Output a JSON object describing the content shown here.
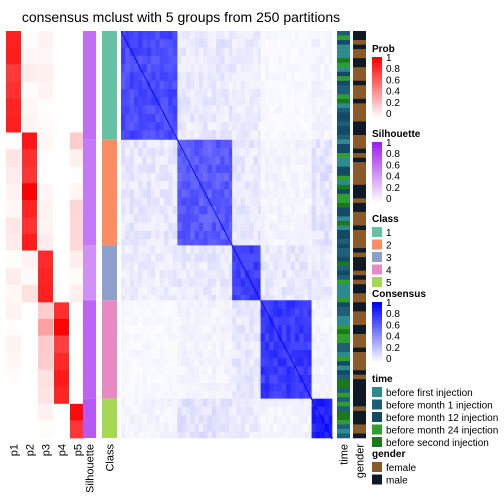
{
  "chart_data": {
    "type": "heatmap",
    "title": "consensus mclust with 5 groups from 250 partitions",
    "groups": [
      1,
      2,
      3,
      4,
      5
    ],
    "group_sizes": [
      105,
      102,
      53,
      95,
      38
    ],
    "prob_columns": [
      "p1",
      "p2",
      "p3",
      "p4",
      "p5"
    ],
    "annotation_columns": [
      "Silhouette",
      "Class"
    ],
    "right_annotation_columns": [
      "time",
      "gender"
    ],
    "class_colors": {
      "1": "#66C2A5",
      "2": "#FC8D62",
      "3": "#8DA0CB",
      "4": "#E78AC3",
      "5": "#A6D854"
    },
    "time_colors": {
      "before first injection": "#2E8B8B",
      "before month 1 injection": "#1F5E7A",
      "before month 12 injection": "#134A66",
      "before month 24 injection": "#2E9E2E",
      "before second injection": "#1A7A1A"
    },
    "gender_colors": {
      "female": "#8B5A2B",
      "male": "#0F1A26"
    },
    "legends": {
      "prob": {
        "title": "Prob",
        "ticks": [
          "1",
          "0.8",
          "0.6",
          "0.4",
          "0.2",
          "0"
        ],
        "low": "#FFFFFF",
        "high": "#FF0000"
      },
      "silhouette": {
        "title": "Silhouette",
        "ticks": [
          "1",
          "0.8",
          "0.6",
          "0.4",
          "0.2",
          "0"
        ],
        "low": "#FFFFFF",
        "high": "#A020F0"
      },
      "class": {
        "title": "Class",
        "labels": [
          "1",
          "2",
          "3",
          "4",
          "5"
        ]
      },
      "consensus": {
        "title": "Consensus",
        "ticks": [
          "1",
          "0.8",
          "0.6",
          "0.4",
          "0.2",
          "0"
        ],
        "low": "#FFFFFF",
        "high": "#0000FF"
      },
      "time": {
        "title": "time",
        "labels": [
          "before first injection",
          "before month 1 injection",
          "before month 12 injection",
          "before month 24 injection",
          "before second injection"
        ]
      },
      "gender": {
        "title": "gender",
        "labels": [
          "female",
          "male"
        ]
      }
    }
  }
}
